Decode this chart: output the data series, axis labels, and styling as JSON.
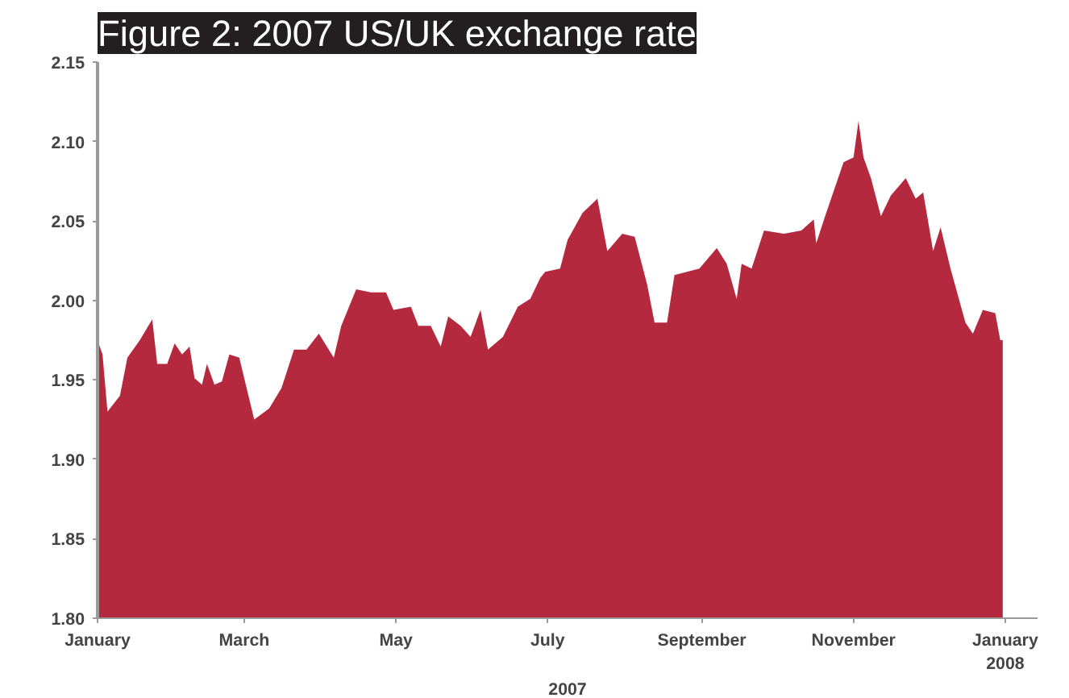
{
  "chart_data": {
    "type": "area",
    "title": "Figure 2: 2007 US/UK exchange rate",
    "xlabel": "2007",
    "x": [
      "2007-01-01",
      "2007-01-03",
      "2007-01-05",
      "2007-01-10",
      "2007-01-13",
      "2007-01-18",
      "2007-01-23",
      "2007-01-25",
      "2007-01-29",
      "2007-02-01",
      "2007-02-04",
      "2007-02-07",
      "2007-02-09",
      "2007-02-12",
      "2007-02-14",
      "2007-02-17",
      "2007-02-20",
      "2007-02-23",
      "2007-02-27",
      "2007-03-05",
      "2007-03-11",
      "2007-03-16",
      "2007-03-21",
      "2007-03-26",
      "2007-03-31",
      "2007-04-06",
      "2007-04-09",
      "2007-04-15",
      "2007-04-21",
      "2007-04-27",
      "2007-04-30",
      "2007-05-07",
      "2007-05-10",
      "2007-05-15",
      "2007-05-19",
      "2007-05-22",
      "2007-05-27",
      "2007-05-31",
      "2007-06-04",
      "2007-06-07",
      "2007-06-13",
      "2007-06-19",
      "2007-06-24",
      "2007-06-28",
      "2007-06-30",
      "2007-07-06",
      "2007-07-09",
      "2007-07-15",
      "2007-07-21",
      "2007-07-25",
      "2007-07-31",
      "2007-08-05",
      "2007-08-10",
      "2007-08-13",
      "2007-08-18",
      "2007-08-21",
      "2007-08-31",
      "2007-09-07",
      "2007-09-11",
      "2007-09-15",
      "2007-09-17",
      "2007-09-21",
      "2007-09-26",
      "2007-10-04",
      "2007-10-11",
      "2007-10-16",
      "2007-10-17",
      "2007-10-21",
      "2007-10-28",
      "2007-11-01",
      "2007-11-03",
      "2007-11-05",
      "2007-11-08",
      "2007-11-12",
      "2007-11-16",
      "2007-11-22",
      "2007-11-26",
      "2007-11-29",
      "2007-12-03",
      "2007-12-06",
      "2007-12-10",
      "2007-12-16",
      "2007-12-19",
      "2007-12-23",
      "2007-12-28",
      "2007-12-30",
      "2007-12-31"
    ],
    "series": [
      {
        "color": "#b5293f",
        "values": [
          1.975,
          1.966,
          1.93,
          1.94,
          1.964,
          1.975,
          1.988,
          1.96,
          1.96,
          1.973,
          1.966,
          1.971,
          1.951,
          1.947,
          1.96,
          1.947,
          1.949,
          1.966,
          1.964,
          1.925,
          1.932,
          1.945,
          1.969,
          1.969,
          1.979,
          1.964,
          1.984,
          2.007,
          2.005,
          2.005,
          1.994,
          1.996,
          1.984,
          1.984,
          1.971,
          1.99,
          1.984,
          1.977,
          1.994,
          1.969,
          1.977,
          1.996,
          2.001,
          2.014,
          2.018,
          2.02,
          2.038,
          2.055,
          2.064,
          2.031,
          2.042,
          2.04,
          2.01,
          1.986,
          1.986,
          2.016,
          2.02,
          2.033,
          2.023,
          2.001,
          2.023,
          2.02,
          2.044,
          2.042,
          2.044,
          2.051,
          2.036,
          2.055,
          2.087,
          2.09,
          2.113,
          2.09,
          2.077,
          2.053,
          2.066,
          2.077,
          2.064,
          2.068,
          2.031,
          2.046,
          2.02,
          1.986,
          1.979,
          1.994,
          1.992,
          1.975,
          1.975
        ]
      }
    ],
    "xlim": [
      "2007-01-01",
      "2008-01-14"
    ],
    "xticks": [
      {
        "value": "2007-01-01",
        "label": "January"
      },
      {
        "value": "2007-03-01",
        "label": "March"
      },
      {
        "value": "2007-05-01",
        "label": "May"
      },
      {
        "value": "2007-07-01",
        "label": "July"
      },
      {
        "value": "2007-09-01",
        "label": "September"
      },
      {
        "value": "2007-11-01",
        "label": "November"
      },
      {
        "value": "2008-01-01",
        "label": "January\n2008"
      }
    ],
    "ylim": [
      1.8,
      2.15
    ],
    "yticks": [
      {
        "value": 1.8,
        "label": "1.80"
      },
      {
        "value": 1.85,
        "label": "1.85"
      },
      {
        "value": 1.9,
        "label": "1.90"
      },
      {
        "value": 1.95,
        "label": "1.95"
      },
      {
        "value": 2.0,
        "label": "2.00"
      },
      {
        "value": 2.05,
        "label": "2.05"
      },
      {
        "value": 2.1,
        "label": "2.10"
      },
      {
        "value": 2.15,
        "label": "2.15"
      }
    ],
    "grid": false
  }
}
